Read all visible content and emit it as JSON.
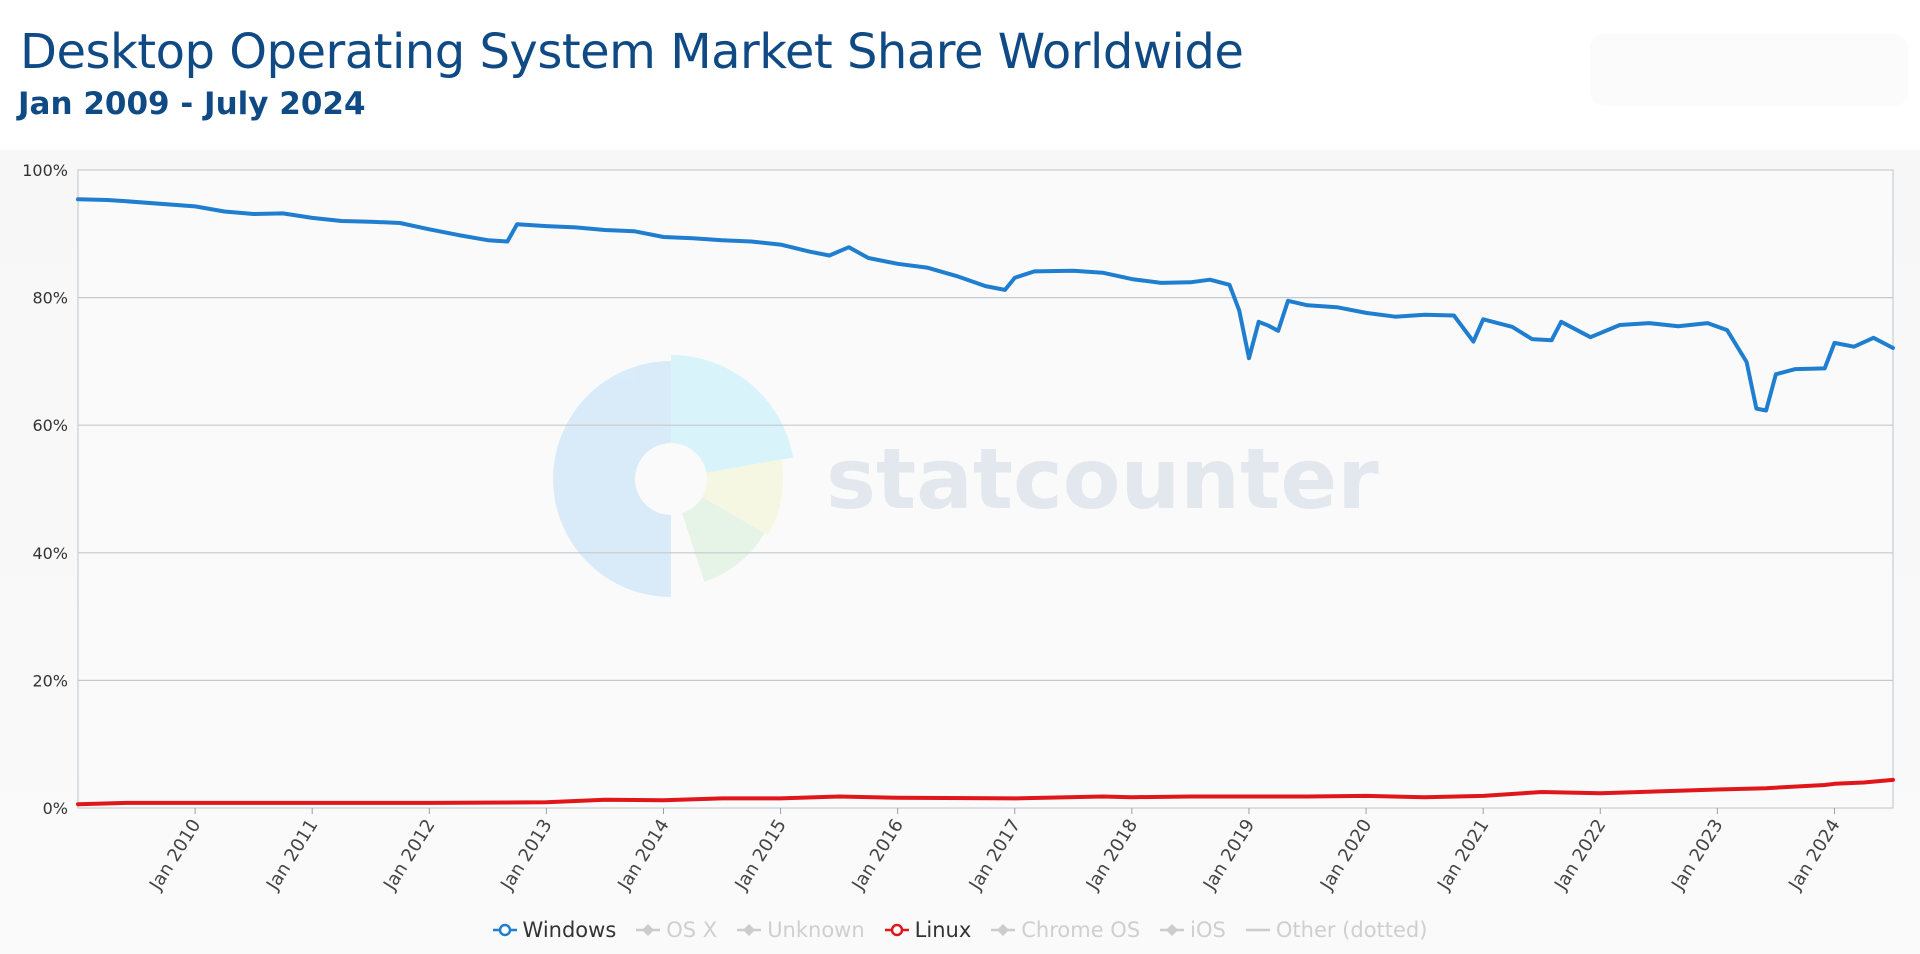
{
  "title": "Desktop Operating System Market Share Worldwide",
  "subtitle": "Jan 2009 - July 2024",
  "watermark": "statcounter",
  "legend": [
    {
      "label": "Windows",
      "active": true,
      "color": "#1f7ecf",
      "marker": "ring"
    },
    {
      "label": "OS X",
      "active": false,
      "color": "#cccccc",
      "marker": "diamond"
    },
    {
      "label": "Unknown",
      "active": false,
      "color": "#cccccc",
      "marker": "diamond"
    },
    {
      "label": "Linux",
      "active": true,
      "color": "#e0161b",
      "marker": "ring"
    },
    {
      "label": "Chrome OS",
      "active": false,
      "color": "#cccccc",
      "marker": "diamond"
    },
    {
      "label": "iOS",
      "active": false,
      "color": "#cccccc",
      "marker": "diamond"
    },
    {
      "label": "Other (dotted)",
      "active": false,
      "color": "#cccccc",
      "marker": "dash"
    }
  ],
  "chart_data": {
    "type": "line",
    "title": "Desktop Operating System Market Share Worldwide",
    "subtitle": "Jan 2009 - July 2024",
    "xlabel": "",
    "ylabel": "",
    "x_range": [
      "2009-01",
      "2024-07"
    ],
    "ylim": [
      0,
      100
    ],
    "y_ticks": [
      "0%",
      "20%",
      "40%",
      "60%",
      "80%",
      "100%"
    ],
    "x_ticks": [
      "Jan 2010",
      "Jan 2011",
      "Jan 2012",
      "Jan 2013",
      "Jan 2014",
      "Jan 2015",
      "Jan 2016",
      "Jan 2017",
      "Jan 2018",
      "Jan 2019",
      "Jan 2020",
      "Jan 2021",
      "Jan 2022",
      "Jan 2023",
      "Jan 2024"
    ],
    "grid": true,
    "legend_position": "bottom",
    "series": [
      {
        "name": "Windows",
        "color": "#1f7ecf",
        "points": [
          [
            "2009-01",
            95.4
          ],
          [
            "2009-04",
            95.3
          ],
          [
            "2009-06",
            95.1
          ],
          [
            "2010-01",
            94.3
          ],
          [
            "2010-04",
            93.5
          ],
          [
            "2010-07",
            93.1
          ],
          [
            "2010-10",
            93.2
          ],
          [
            "2011-01",
            92.5
          ],
          [
            "2011-04",
            92.0
          ],
          [
            "2011-07",
            91.9
          ],
          [
            "2011-10",
            91.7
          ],
          [
            "2012-01",
            90.7
          ],
          [
            "2012-04",
            89.8
          ],
          [
            "2012-07",
            89.0
          ],
          [
            "2012-09",
            88.8
          ],
          [
            "2012-10",
            91.5
          ],
          [
            "2013-01",
            91.2
          ],
          [
            "2013-04",
            91.0
          ],
          [
            "2013-07",
            90.6
          ],
          [
            "2013-10",
            90.4
          ],
          [
            "2014-01",
            89.5
          ],
          [
            "2014-04",
            89.3
          ],
          [
            "2014-07",
            89.0
          ],
          [
            "2014-10",
            88.8
          ],
          [
            "2015-01",
            88.3
          ],
          [
            "2015-04",
            87.2
          ],
          [
            "2015-06",
            86.6
          ],
          [
            "2015-08",
            87.9
          ],
          [
            "2015-10",
            86.2
          ],
          [
            "2016-01",
            85.3
          ],
          [
            "2016-04",
            84.7
          ],
          [
            "2016-07",
            83.4
          ],
          [
            "2016-10",
            81.8
          ],
          [
            "2016-12",
            81.2
          ],
          [
            "2017-01",
            83.1
          ],
          [
            "2017-03",
            84.1
          ],
          [
            "2017-07",
            84.2
          ],
          [
            "2017-10",
            83.9
          ],
          [
            "2018-01",
            82.9
          ],
          [
            "2018-04",
            82.3
          ],
          [
            "2018-07",
            82.4
          ],
          [
            "2018-09",
            82.8
          ],
          [
            "2018-11",
            82.0
          ],
          [
            "2018-12",
            78.0
          ],
          [
            "2019-01",
            70.5
          ],
          [
            "2019-02",
            76.2
          ],
          [
            "2019-03",
            75.6
          ],
          [
            "2019-04",
            74.8
          ],
          [
            "2019-05",
            79.5
          ],
          [
            "2019-07",
            78.8
          ],
          [
            "2019-10",
            78.5
          ],
          [
            "2020-01",
            77.6
          ],
          [
            "2020-04",
            77.0
          ],
          [
            "2020-07",
            77.3
          ],
          [
            "2020-10",
            77.2
          ],
          [
            "2020-12",
            73.1
          ],
          [
            "2021-01",
            76.6
          ],
          [
            "2021-04",
            75.4
          ],
          [
            "2021-06",
            73.5
          ],
          [
            "2021-08",
            73.3
          ],
          [
            "2021-09",
            76.2
          ],
          [
            "2021-12",
            73.8
          ],
          [
            "2022-03",
            75.7
          ],
          [
            "2022-06",
            76.0
          ],
          [
            "2022-09",
            75.5
          ],
          [
            "2022-12",
            76.0
          ],
          [
            "2023-02",
            74.9
          ],
          [
            "2023-04",
            69.9
          ],
          [
            "2023-05",
            62.6
          ],
          [
            "2023-06",
            62.3
          ],
          [
            "2023-07",
            68.0
          ],
          [
            "2023-09",
            68.8
          ],
          [
            "2023-12",
            68.9
          ],
          [
            "2024-01",
            72.9
          ],
          [
            "2024-03",
            72.3
          ],
          [
            "2024-05",
            73.7
          ],
          [
            "2024-07",
            72.1
          ]
        ]
      },
      {
        "name": "Linux",
        "color": "#e0161b",
        "points": [
          [
            "2009-01",
            0.6
          ],
          [
            "2009-06",
            0.8
          ],
          [
            "2010-01",
            0.8
          ],
          [
            "2011-01",
            0.8
          ],
          [
            "2012-01",
            0.8
          ],
          [
            "2013-01",
            0.9
          ],
          [
            "2013-07",
            1.3
          ],
          [
            "2014-01",
            1.2
          ],
          [
            "2014-07",
            1.5
          ],
          [
            "2015-01",
            1.5
          ],
          [
            "2015-07",
            1.8
          ],
          [
            "2016-01",
            1.6
          ],
          [
            "2017-01",
            1.5
          ],
          [
            "2017-10",
            1.8
          ],
          [
            "2018-01",
            1.7
          ],
          [
            "2018-07",
            1.8
          ],
          [
            "2019-01",
            1.8
          ],
          [
            "2019-07",
            1.8
          ],
          [
            "2020-01",
            1.9
          ],
          [
            "2020-07",
            1.7
          ],
          [
            "2021-01",
            1.9
          ],
          [
            "2021-07",
            2.5
          ],
          [
            "2022-01",
            2.3
          ],
          [
            "2022-07",
            2.6
          ],
          [
            "2023-01",
            2.9
          ],
          [
            "2023-06",
            3.1
          ],
          [
            "2023-12",
            3.6
          ],
          [
            "2024-01",
            3.8
          ],
          [
            "2024-04",
            4.0
          ],
          [
            "2024-07",
            4.4
          ]
        ]
      }
    ]
  }
}
